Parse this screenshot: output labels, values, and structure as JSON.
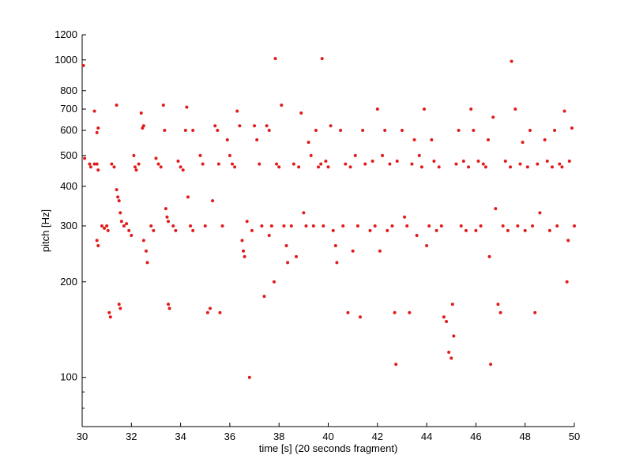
{
  "chart_data": {
    "type": "scatter",
    "title": "",
    "xlabel": "time [s] (20 seconds fragment)",
    "ylabel": "pitch [Hz]",
    "x_scale": "linear",
    "y_scale": "log",
    "xlim": [
      30,
      50
    ],
    "ylim": [
      70,
      1200
    ],
    "x_ticks": [
      30,
      32,
      34,
      36,
      38,
      40,
      42,
      44,
      46,
      48,
      50
    ],
    "y_ticks": [
      100,
      200,
      300,
      400,
      500,
      600,
      700,
      800,
      1000,
      1200
    ],
    "y_minor_ticks": [
      80,
      90
    ],
    "grid": false,
    "legend": "none",
    "marker_color": "#e11b1b",
    "series": [
      {
        "points": [
          [
            30.05,
            960
          ],
          [
            30.1,
            490
          ],
          [
            30.3,
            470
          ],
          [
            30.35,
            460
          ],
          [
            30.5,
            470
          ],
          [
            30.5,
            690
          ],
          [
            30.6,
            590
          ],
          [
            30.65,
            610
          ],
          [
            30.6,
            470
          ],
          [
            30.65,
            450
          ],
          [
            30.6,
            270
          ],
          [
            30.65,
            260
          ],
          [
            30.8,
            300
          ],
          [
            30.9,
            295
          ],
          [
            31.0,
            300
          ],
          [
            31.05,
            290
          ],
          [
            31.1,
            160
          ],
          [
            31.15,
            155
          ],
          [
            31.2,
            470
          ],
          [
            31.3,
            460
          ],
          [
            31.4,
            720
          ],
          [
            31.4,
            390
          ],
          [
            31.45,
            370
          ],
          [
            31.5,
            360
          ],
          [
            31.55,
            330
          ],
          [
            31.6,
            310
          ],
          [
            31.5,
            170
          ],
          [
            31.55,
            165
          ],
          [
            31.7,
            300
          ],
          [
            31.8,
            305
          ],
          [
            31.9,
            290
          ],
          [
            32.0,
            280
          ],
          [
            32.1,
            500
          ],
          [
            32.15,
            460
          ],
          [
            32.2,
            450
          ],
          [
            32.3,
            470
          ],
          [
            32.4,
            680
          ],
          [
            32.45,
            610
          ],
          [
            32.5,
            620
          ],
          [
            32.5,
            270
          ],
          [
            32.6,
            250
          ],
          [
            32.65,
            230
          ],
          [
            32.8,
            300
          ],
          [
            32.9,
            290
          ],
          [
            33.0,
            490
          ],
          [
            33.1,
            470
          ],
          [
            33.2,
            460
          ],
          [
            33.3,
            720
          ],
          [
            33.35,
            600
          ],
          [
            33.4,
            340
          ],
          [
            33.45,
            320
          ],
          [
            33.5,
            310
          ],
          [
            33.5,
            170
          ],
          [
            33.55,
            165
          ],
          [
            33.7,
            300
          ],
          [
            33.8,
            290
          ],
          [
            33.9,
            480
          ],
          [
            34.0,
            460
          ],
          [
            34.1,
            450
          ],
          [
            34.2,
            600
          ],
          [
            34.25,
            710
          ],
          [
            34.3,
            370
          ],
          [
            34.4,
            300
          ],
          [
            34.5,
            290
          ],
          [
            34.5,
            600
          ],
          [
            34.8,
            500
          ],
          [
            34.9,
            470
          ],
          [
            35.0,
            300
          ],
          [
            35.1,
            160
          ],
          [
            35.2,
            165
          ],
          [
            35.3,
            360
          ],
          [
            35.4,
            620
          ],
          [
            35.5,
            600
          ],
          [
            35.55,
            470
          ],
          [
            35.6,
            160
          ],
          [
            35.7,
            300
          ],
          [
            35.9,
            560
          ],
          [
            36.0,
            500
          ],
          [
            36.1,
            470
          ],
          [
            36.2,
            460
          ],
          [
            36.3,
            690
          ],
          [
            36.4,
            620
          ],
          [
            36.5,
            270
          ],
          [
            36.55,
            250
          ],
          [
            36.6,
            240
          ],
          [
            36.7,
            310
          ],
          [
            36.8,
            100
          ],
          [
            36.9,
            290
          ],
          [
            37.0,
            620
          ],
          [
            37.1,
            560
          ],
          [
            37.2,
            470
          ],
          [
            37.3,
            300
          ],
          [
            37.4,
            180
          ],
          [
            37.5,
            620
          ],
          [
            37.6,
            600
          ],
          [
            37.6,
            280
          ],
          [
            37.7,
            300
          ],
          [
            37.8,
            200
          ],
          [
            37.85,
            1010
          ],
          [
            37.9,
            470
          ],
          [
            38.0,
            460
          ],
          [
            38.1,
            720
          ],
          [
            38.2,
            300
          ],
          [
            38.3,
            260
          ],
          [
            38.35,
            230
          ],
          [
            38.5,
            300
          ],
          [
            38.6,
            470
          ],
          [
            38.7,
            240
          ],
          [
            38.8,
            460
          ],
          [
            38.9,
            680
          ],
          [
            39.0,
            330
          ],
          [
            39.1,
            300
          ],
          [
            39.2,
            550
          ],
          [
            39.3,
            500
          ],
          [
            39.4,
            300
          ],
          [
            39.5,
            600
          ],
          [
            39.6,
            460
          ],
          [
            39.7,
            470
          ],
          [
            39.75,
            1010
          ],
          [
            39.8,
            300
          ],
          [
            39.9,
            480
          ],
          [
            40.0,
            460
          ],
          [
            40.1,
            620
          ],
          [
            40.2,
            290
          ],
          [
            40.3,
            260
          ],
          [
            40.35,
            230
          ],
          [
            40.5,
            600
          ],
          [
            40.6,
            300
          ],
          [
            40.7,
            470
          ],
          [
            40.8,
            160
          ],
          [
            40.9,
            460
          ],
          [
            41.0,
            250
          ],
          [
            41.1,
            500
          ],
          [
            41.2,
            300
          ],
          [
            41.3,
            155
          ],
          [
            41.4,
            600
          ],
          [
            41.5,
            470
          ],
          [
            41.7,
            290
          ],
          [
            41.8,
            480
          ],
          [
            41.9,
            300
          ],
          [
            42.0,
            700
          ],
          [
            42.1,
            250
          ],
          [
            42.2,
            500
          ],
          [
            42.3,
            600
          ],
          [
            42.4,
            290
          ],
          [
            42.5,
            470
          ],
          [
            42.6,
            300
          ],
          [
            42.7,
            160
          ],
          [
            42.75,
            110
          ],
          [
            42.8,
            480
          ],
          [
            43.0,
            600
          ],
          [
            43.1,
            320
          ],
          [
            43.2,
            300
          ],
          [
            43.3,
            160
          ],
          [
            43.4,
            470
          ],
          [
            43.5,
            560
          ],
          [
            43.6,
            280
          ],
          [
            43.7,
            500
          ],
          [
            43.8,
            460
          ],
          [
            43.9,
            700
          ],
          [
            44.0,
            260
          ],
          [
            44.1,
            300
          ],
          [
            44.2,
            560
          ],
          [
            44.3,
            480
          ],
          [
            44.4,
            290
          ],
          [
            44.5,
            460
          ],
          [
            44.6,
            300
          ],
          [
            44.7,
            155
          ],
          [
            44.8,
            150
          ],
          [
            44.9,
            120
          ],
          [
            45.0,
            115
          ],
          [
            45.05,
            170
          ],
          [
            45.1,
            135
          ],
          [
            45.2,
            470
          ],
          [
            45.3,
            600
          ],
          [
            45.4,
            300
          ],
          [
            45.5,
            480
          ],
          [
            45.6,
            290
          ],
          [
            45.7,
            460
          ],
          [
            45.8,
            700
          ],
          [
            45.9,
            600
          ],
          [
            46.0,
            290
          ],
          [
            46.1,
            480
          ],
          [
            46.2,
            300
          ],
          [
            46.3,
            470
          ],
          [
            46.4,
            460
          ],
          [
            46.5,
            560
          ],
          [
            46.55,
            240
          ],
          [
            46.6,
            110
          ],
          [
            46.7,
            660
          ],
          [
            46.8,
            340
          ],
          [
            46.9,
            170
          ],
          [
            47.0,
            160
          ],
          [
            47.1,
            300
          ],
          [
            47.2,
            480
          ],
          [
            47.3,
            290
          ],
          [
            47.4,
            460
          ],
          [
            47.45,
            990
          ],
          [
            47.6,
            700
          ],
          [
            47.7,
            300
          ],
          [
            47.8,
            470
          ],
          [
            47.9,
            550
          ],
          [
            48.0,
            290
          ],
          [
            48.1,
            460
          ],
          [
            48.2,
            600
          ],
          [
            48.3,
            300
          ],
          [
            48.4,
            160
          ],
          [
            48.5,
            470
          ],
          [
            48.6,
            330
          ],
          [
            48.8,
            560
          ],
          [
            48.9,
            480
          ],
          [
            49.0,
            290
          ],
          [
            49.1,
            460
          ],
          [
            49.2,
            600
          ],
          [
            49.3,
            300
          ],
          [
            49.4,
            470
          ],
          [
            49.5,
            460
          ],
          [
            49.6,
            690
          ],
          [
            49.7,
            200
          ],
          [
            49.75,
            270
          ],
          [
            49.8,
            480
          ],
          [
            49.9,
            610
          ],
          [
            50.0,
            300
          ]
        ]
      }
    ]
  }
}
